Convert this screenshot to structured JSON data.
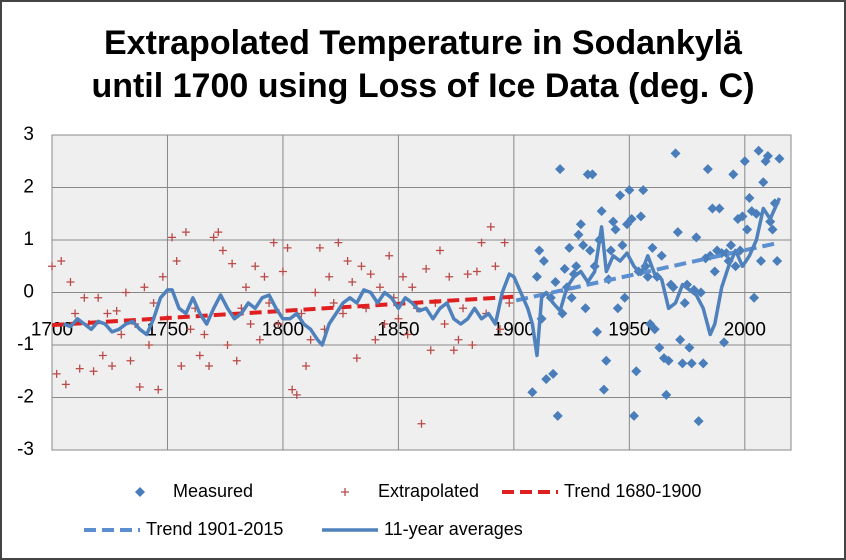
{
  "chart_data": {
    "type": "scatter",
    "title": "Extrapolated Temperature in Sodankylä",
    "subtitle": "until 1700 using Loss of Ice Data (deg. C)",
    "xlim": [
      1700,
      2020
    ],
    "xticks": [
      1700,
      1750,
      1800,
      1850,
      1900,
      1950,
      2000
    ],
    "ylim": [
      -3,
      3
    ],
    "yticks": [
      -3,
      -2,
      -1,
      0,
      1,
      2,
      3
    ],
    "grid": true,
    "legend": "bottom",
    "series": [
      {
        "name": "Measured",
        "color": "#4a7ebb",
        "marker": "diamond",
        "x": [
          1908,
          1910,
          1911,
          1912,
          1913,
          1914,
          1916,
          1917,
          1918,
          1919,
          1920,
          1921,
          1922,
          1923,
          1924,
          1925,
          1926,
          1927,
          1928,
          1929,
          1930,
          1931,
          1932,
          1933,
          1934,
          1935,
          1936,
          1937,
          1938,
          1939,
          1940,
          1941,
          1942,
          1943,
          1944,
          1945,
          1946,
          1947,
          1948,
          1949,
          1950,
          1951,
          1952,
          1953,
          1954,
          1955,
          1956,
          1957,
          1958,
          1959,
          1960,
          1961,
          1962,
          1963,
          1964,
          1965,
          1966,
          1967,
          1968,
          1969,
          1970,
          1971,
          1972,
          1973,
          1974,
          1975,
          1976,
          1977,
          1978,
          1979,
          1980,
          1981,
          1982,
          1983,
          1984,
          1985,
          1986,
          1987,
          1988,
          1989,
          1990,
          1991,
          1992,
          1993,
          1994,
          1995,
          1996,
          1997,
          1998,
          1999,
          2000,
          2001,
          2002,
          2003,
          2004,
          2005,
          2006,
          2007,
          2008,
          2009,
          2010,
          2011,
          2012,
          2013,
          2014,
          2015
        ],
        "values": [
          -1.9,
          0.3,
          0.8,
          -0.5,
          0.6,
          -1.65,
          -0.1,
          -1.55,
          0.2,
          -2.35,
          2.35,
          -0.4,
          0.45,
          0.1,
          0.85,
          -0.1,
          0.35,
          0.5,
          1.1,
          1.3,
          0.9,
          -0.3,
          2.25,
          0.8,
          2.25,
          0.5,
          -0.75,
          1.0,
          1.55,
          -1.85,
          -1.3,
          0.25,
          0.8,
          1.35,
          1.2,
          -0.3,
          1.85,
          0.9,
          -0.1,
          1.3,
          1.95,
          1.4,
          -2.35,
          -1.5,
          0.4,
          1.45,
          1.95,
          0.5,
          0.3,
          -0.6,
          0.85,
          -0.7,
          0.3,
          -1.05,
          0.7,
          -1.25,
          -1.95,
          -1.3,
          0.15,
          0.1,
          2.65,
          1.15,
          -0.9,
          -1.35,
          -0.2,
          0.15,
          -1.05,
          -1.35,
          0.05,
          1.05,
          -2.45,
          0.0,
          -1.35,
          0.65,
          2.35,
          0.7,
          1.6,
          0.4,
          0.8,
          1.6,
          0.75,
          -0.95,
          0.75,
          0.6,
          0.9,
          2.25,
          0.5,
          1.4,
          0.8,
          1.45,
          2.5,
          1.2,
          1.8,
          1.55,
          -0.1,
          1.5,
          2.7,
          0.6,
          2.1,
          2.5,
          2.6,
          1.35,
          1.2,
          1.7,
          0.6,
          2.55
        ]
      },
      {
        "name": "Extrapolated",
        "color": "#b94a48",
        "marker": "plus",
        "x": [
          1700,
          1702,
          1704,
          1706,
          1708,
          1710,
          1712,
          1714,
          1716,
          1718,
          1720,
          1722,
          1724,
          1726,
          1728,
          1730,
          1732,
          1734,
          1736,
          1738,
          1740,
          1742,
          1744,
          1746,
          1748,
          1750,
          1752,
          1754,
          1756,
          1758,
          1760,
          1762,
          1764,
          1766,
          1768,
          1770,
          1772,
          1774,
          1776,
          1778,
          1780,
          1782,
          1784,
          1786,
          1788,
          1790,
          1792,
          1794,
          1796,
          1798,
          1800,
          1802,
          1804,
          1806,
          1808,
          1810,
          1812,
          1814,
          1816,
          1818,
          1820,
          1822,
          1824,
          1826,
          1828,
          1830,
          1832,
          1834,
          1836,
          1838,
          1840,
          1842,
          1844,
          1846,
          1848,
          1850,
          1852,
          1854,
          1856,
          1858,
          1860,
          1862,
          1864,
          1866,
          1868,
          1870,
          1872,
          1874,
          1876,
          1878,
          1880,
          1882,
          1884,
          1886,
          1888,
          1890,
          1892,
          1894,
          1896,
          1898
        ],
        "values": [
          0.5,
          -1.55,
          0.6,
          -1.75,
          0.2,
          -0.4,
          -1.45,
          -0.1,
          -0.6,
          -1.5,
          -0.1,
          -1.2,
          -0.4,
          -1.4,
          -0.35,
          -0.8,
          0.0,
          -1.3,
          -0.6,
          -1.8,
          0.1,
          -1.0,
          -0.2,
          -1.85,
          0.3,
          -0.5,
          1.05,
          0.6,
          -1.4,
          1.15,
          -0.7,
          -0.3,
          -1.2,
          -0.8,
          -1.4,
          1.05,
          1.15,
          0.8,
          -1.0,
          0.55,
          -1.3,
          -0.3,
          0.1,
          -0.6,
          0.5,
          -0.9,
          0.3,
          -0.2,
          0.95,
          -0.6,
          0.4,
          0.85,
          -1.85,
          -1.95,
          -0.4,
          -1.4,
          -0.9,
          0.0,
          0.85,
          -0.7,
          0.3,
          -0.2,
          0.95,
          -0.4,
          0.6,
          0.2,
          -1.25,
          0.5,
          -0.3,
          0.35,
          -0.9,
          0.1,
          -0.6,
          0.7,
          -0.1,
          -0.5,
          0.3,
          -0.8,
          0.1,
          -0.3,
          -2.5,
          0.45,
          -1.1,
          -0.2,
          0.8,
          -0.6,
          0.3,
          -1.1,
          -0.9,
          -0.3,
          0.35,
          -1.0,
          0.4,
          0.95,
          -0.4,
          1.25,
          0.5,
          -0.7,
          0.95,
          -0.2
        ]
      },
      {
        "name": "Trend 1680-1900",
        "color": "#e02020",
        "line": "dashed",
        "width": 4,
        "x": [
          1700,
          1900
        ],
        "values": [
          -0.62,
          -0.08
        ]
      },
      {
        "name": "Trend 1901-2015",
        "color": "#5b8fd0",
        "line": "dashed",
        "width": 4,
        "x": [
          1901,
          2015
        ],
        "values": [
          -0.15,
          0.95
        ]
      },
      {
        "name": "11-year averages",
        "color": "#4f81bd",
        "line": "solid",
        "width": 3.5,
        "x": [
          1705,
          1708,
          1711,
          1714,
          1717,
          1720,
          1723,
          1726,
          1729,
          1732,
          1735,
          1738,
          1741,
          1744,
          1747,
          1750,
          1752,
          1755,
          1758,
          1761,
          1764,
          1767,
          1770,
          1773,
          1776,
          1779,
          1782,
          1785,
          1788,
          1791,
          1794,
          1797,
          1800,
          1803,
          1806,
          1809,
          1812,
          1815,
          1817,
          1820,
          1823,
          1826,
          1829,
          1832,
          1835,
          1838,
          1841,
          1844,
          1847,
          1850,
          1853,
          1856,
          1859,
          1862,
          1865,
          1868,
          1871,
          1874,
          1877,
          1880,
          1883,
          1886,
          1889,
          1892,
          1895,
          1898,
          1900,
          1903,
          1906,
          1908,
          1910,
          1912,
          1914,
          1917,
          1920,
          1923,
          1926,
          1929,
          1932,
          1935,
          1938,
          1940,
          1943,
          1946,
          1949,
          1952,
          1955,
          1958,
          1961,
          1964,
          1967,
          1970,
          1973,
          1976,
          1979,
          1982,
          1985,
          1987,
          1990,
          1993,
          1996,
          1999,
          2002,
          2005,
          2008,
          2011,
          2015
        ],
        "values": [
          -0.6,
          -0.65,
          -0.5,
          -0.6,
          -0.7,
          -0.55,
          -0.6,
          -0.75,
          -0.7,
          -0.6,
          -0.55,
          -0.7,
          -0.8,
          -0.5,
          -0.1,
          0.05,
          0.05,
          -0.3,
          -0.4,
          -0.1,
          -0.4,
          -0.6,
          -0.3,
          -0.05,
          -0.3,
          -0.5,
          -0.4,
          -0.2,
          -0.3,
          -0.1,
          -0.05,
          -0.3,
          -0.5,
          -0.5,
          -0.4,
          -0.6,
          -0.7,
          -0.9,
          -1.0,
          -0.6,
          -0.4,
          -0.2,
          -0.1,
          -0.2,
          0.05,
          0.0,
          -0.2,
          0.0,
          -0.1,
          -0.3,
          -0.1,
          -0.2,
          -0.35,
          -0.3,
          -0.5,
          -0.3,
          -0.2,
          -0.5,
          -0.6,
          -0.5,
          -0.3,
          -0.5,
          -0.4,
          -0.6,
          0.0,
          0.35,
          0.3,
          0.0,
          -0.3,
          -0.6,
          -1.2,
          -0.1,
          0.0,
          -0.2,
          -0.35,
          0.1,
          0.3,
          0.4,
          0.2,
          0.4,
          1.25,
          0.4,
          0.7,
          0.6,
          0.75,
          0.5,
          0.35,
          0.7,
          0.35,
          0.25,
          -0.3,
          -0.2,
          0.15,
          0.05,
          -0.05,
          -0.3,
          -0.8,
          -0.6,
          0.1,
          0.5,
          0.8,
          0.5,
          0.7,
          1.0,
          1.6,
          1.4,
          1.8
        ]
      }
    ]
  }
}
